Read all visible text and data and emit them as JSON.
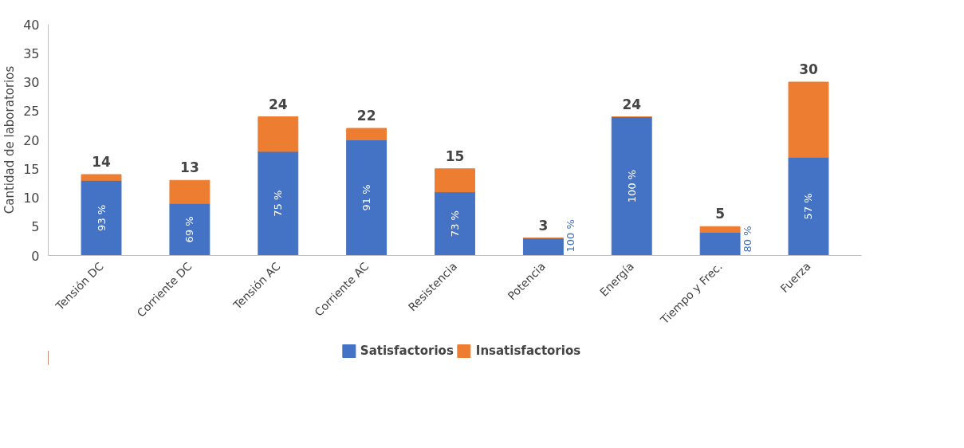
{
  "chart_data": {
    "type": "bar",
    "stacked": true,
    "ylabel": "Cantidad de laboratorios",
    "categories": [
      "Tensión DC",
      "Corriente DC",
      "Tensión AC",
      "Corriente AC",
      "Resistencia",
      "Potencia",
      "Energía",
      "Tiempo y Frec.",
      "Fuerza"
    ],
    "series": [
      {
        "name": "Satisfactorios",
        "color": "#4472c4",
        "values": [
          13,
          9,
          18,
          20,
          11,
          3,
          24,
          4,
          17
        ]
      },
      {
        "name": "Insatisfactorios",
        "color": "#ed7d31",
        "values": [
          1,
          4,
          6,
          2,
          4,
          0,
          0,
          1,
          13
        ]
      }
    ],
    "annotations": [
      "93 %",
      "69 %",
      "75 %",
      "91 %",
      "73 %",
      "100 %",
      "100 %",
      "80 %",
      "57 %"
    ],
    "totals": [
      "14",
      "13",
      "24",
      "22",
      "15",
      "3",
      "24",
      "5",
      "30"
    ],
    "ylim": [
      0,
      40
    ],
    "yticks": [
      0,
      5,
      10,
      15,
      20,
      25,
      30,
      35,
      40
    ],
    "grid": false,
    "legend": "bottom"
  }
}
